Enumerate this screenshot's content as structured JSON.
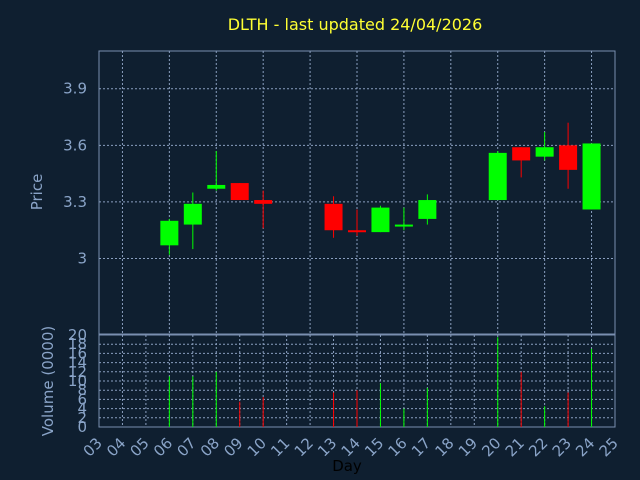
{
  "chart_data": [
    {
      "type": "candlestick",
      "title": "DLTH - last updated 24/04/2026",
      "ylabel": "Price",
      "ylim": [
        2.6,
        4.1
      ],
      "yticks": [
        3,
        3.3,
        3.6,
        3.9
      ],
      "ytick_labels": [
        "3",
        "3.3",
        "3.6",
        "3.9"
      ],
      "grid": true,
      "up_color": "#00ff00",
      "down_color": "#ff0000",
      "candles": [
        {
          "day": 6,
          "open": 3.07,
          "high": 3.21,
          "low": 3.02,
          "close": 3.2
        },
        {
          "day": 7,
          "open": 3.18,
          "high": 3.35,
          "low": 3.05,
          "close": 3.29
        },
        {
          "day": 8,
          "open": 3.37,
          "high": 3.57,
          "low": 3.36,
          "close": 3.39
        },
        {
          "day": 9,
          "open": 3.4,
          "high": 3.4,
          "low": 3.32,
          "close": 3.31
        },
        {
          "day": 10,
          "open": 3.31,
          "high": 3.36,
          "low": 3.16,
          "close": 3.29
        },
        {
          "day": 13,
          "open": 3.29,
          "high": 3.33,
          "low": 3.11,
          "close": 3.15
        },
        {
          "day": 14,
          "open": 3.15,
          "high": 3.26,
          "low": 3.12,
          "close": 3.14
        },
        {
          "day": 15,
          "open": 3.14,
          "high": 3.28,
          "low": 3.14,
          "close": 3.27
        },
        {
          "day": 16,
          "open": 3.17,
          "high": 3.27,
          "low": 3.15,
          "close": 3.18
        },
        {
          "day": 17,
          "open": 3.21,
          "high": 3.34,
          "low": 3.18,
          "close": 3.31
        },
        {
          "day": 20,
          "open": 3.31,
          "high": 3.57,
          "low": 3.31,
          "close": 3.56
        },
        {
          "day": 21,
          "open": 3.59,
          "high": 3.59,
          "low": 3.43,
          "close": 3.52
        },
        {
          "day": 22,
          "open": 3.54,
          "high": 3.67,
          "low": 3.52,
          "close": 3.59
        },
        {
          "day": 23,
          "open": 3.6,
          "high": 3.72,
          "low": 3.37,
          "close": 3.47
        },
        {
          "day": 24,
          "open": 3.26,
          "high": 3.61,
          "low": 3.26,
          "close": 3.61
        }
      ]
    },
    {
      "type": "bar",
      "ylabel": "Volume (0000)",
      "xlabel": "Day",
      "ylim": [
        0,
        20
      ],
      "yticks": [
        0,
        2,
        4,
        6,
        8,
        10,
        12,
        14,
        16,
        18,
        20
      ],
      "ytick_labels": [
        "0",
        "2",
        "4",
        "6",
        "8",
        "10",
        "12",
        "14",
        "16",
        "18",
        "20"
      ],
      "categories": [
        "03",
        "04",
        "05",
        "06",
        "07",
        "08",
        "09",
        "10",
        "11",
        "12",
        "13",
        "14",
        "15",
        "16",
        "17",
        "18",
        "19",
        "20",
        "21",
        "22",
        "23",
        "24",
        "25"
      ],
      "bars": [
        {
          "day": 6,
          "value": 11.0,
          "direction": "up"
        },
        {
          "day": 7,
          "value": 11.0,
          "direction": "up"
        },
        {
          "day": 8,
          "value": 12.0,
          "direction": "up"
        },
        {
          "day": 9,
          "value": 5.5,
          "direction": "down"
        },
        {
          "day": 10,
          "value": 6.5,
          "direction": "down"
        },
        {
          "day": 13,
          "value": 7.5,
          "direction": "down"
        },
        {
          "day": 14,
          "value": 8.0,
          "direction": "down"
        },
        {
          "day": 15,
          "value": 9.5,
          "direction": "up"
        },
        {
          "day": 16,
          "value": 4.0,
          "direction": "up"
        },
        {
          "day": 17,
          "value": 8.5,
          "direction": "up"
        },
        {
          "day": 20,
          "value": 19.5,
          "direction": "up"
        },
        {
          "day": 21,
          "value": 12.0,
          "direction": "down"
        },
        {
          "day": 22,
          "value": 4.5,
          "direction": "up"
        },
        {
          "day": 23,
          "value": 7.5,
          "direction": "down"
        },
        {
          "day": 24,
          "value": 17.0,
          "direction": "up"
        }
      ]
    }
  ]
}
